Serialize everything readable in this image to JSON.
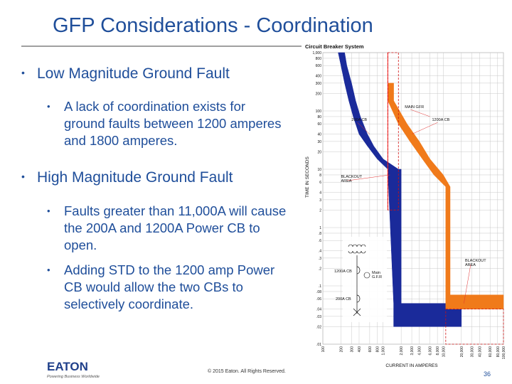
{
  "slide": {
    "title": "GFP Considerations - Coordination",
    "bullets": [
      {
        "text": "Low Magnitude Ground Fault",
        "subs": [
          "A lack of coordination exists for ground faults between 1200 amperes and 1800 amperes."
        ]
      },
      {
        "text": "High Magnitude Ground Fault",
        "subs": [
          "Faults greater than 11,000A will cause the 200A and 1200A Power CB to open.",
          "Adding STD to the 1200 amp Power CB would allow the two CBs to selectively coordinate."
        ]
      }
    ],
    "copyright": "© 2015 Eaton. All Rights Reserved.",
    "page_number": "36",
    "logo": {
      "brand": "EATON",
      "tagline": "Powering Business Worldwide"
    }
  },
  "chart_data": {
    "type": "line",
    "title": "Circuit Breaker System",
    "xlabel": "CURRENT IN AMPERES",
    "ylabel": "TIME IN SECONDS",
    "x_scale": "log",
    "y_scale": "log",
    "xlim": [
      100,
      100000
    ],
    "ylim": [
      0.01,
      1000
    ],
    "x_ticks": [
      "100",
      "200",
      "300",
      "400",
      "600",
      "800",
      "1,000",
      "2,000",
      "3,000",
      "4,000",
      "6,000",
      "8,000",
      "10,000",
      "20,000",
      "30,000",
      "40,000",
      "60,000",
      "80,000",
      "100,000"
    ],
    "x_tick_values": [
      100,
      200,
      300,
      400,
      600,
      800,
      1000,
      2000,
      3000,
      4000,
      6000,
      8000,
      10000,
      20000,
      30000,
      40000,
      60000,
      80000,
      100000
    ],
    "y_ticks": [
      "1,000",
      "800",
      "600",
      "400",
      "300",
      "200",
      "100",
      "80",
      "60",
      "40",
      "30",
      "20",
      "10",
      "8",
      "6",
      "4",
      "3",
      "2",
      "1",
      ".8",
      ".6",
      ".4",
      ".3",
      ".2",
      ".1",
      ".08",
      ".06",
      ".04",
      ".03",
      ".02",
      ".01"
    ],
    "y_tick_values": [
      1000,
      800,
      600,
      400,
      300,
      200,
      100,
      80,
      60,
      40,
      30,
      20,
      10,
      8,
      6,
      4,
      3,
      2,
      1,
      0.8,
      0.6,
      0.4,
      0.3,
      0.2,
      0.1,
      0.08,
      0.06,
      0.04,
      0.03,
      0.02,
      0.01
    ],
    "grid": true,
    "series": [
      {
        "name": "200A CB",
        "color": "#1a2a9a",
        "upper": [
          [
            230,
            1000
          ],
          [
            250,
            600
          ],
          [
            300,
            300
          ],
          [
            350,
            150
          ],
          [
            420,
            80
          ],
          [
            550,
            40
          ],
          [
            700,
            25
          ],
          [
            1000,
            15
          ],
          [
            1800,
            10
          ],
          [
            2000,
            10
          ],
          [
            2000,
            0.05
          ],
          [
            20000,
            0.05
          ],
          [
            20000,
            0.02
          ]
        ],
        "lower": [
          [
            180,
            1000
          ],
          [
            200,
            600
          ],
          [
            230,
            300
          ],
          [
            270,
            150
          ],
          [
            320,
            80
          ],
          [
            400,
            40
          ],
          [
            550,
            25
          ],
          [
            800,
            15
          ],
          [
            1200,
            10
          ],
          [
            1500,
            0.05
          ],
          [
            1500,
            0.02
          ],
          [
            20000,
            0.02
          ]
        ]
      },
      {
        "name": "1200A CB",
        "color": "#f07a1a",
        "upper": [
          [
            1500,
            300
          ],
          [
            1500,
            150
          ],
          [
            2500,
            60
          ],
          [
            4000,
            30
          ],
          [
            6000,
            15
          ],
          [
            10000,
            8
          ],
          [
            13000,
            5
          ],
          [
            13000,
            0.07
          ],
          [
            100000,
            0.07
          ],
          [
            100000,
            0.04
          ]
        ],
        "lower": [
          [
            1200,
            300
          ],
          [
            1200,
            150
          ],
          [
            1800,
            60
          ],
          [
            2800,
            30
          ],
          [
            4500,
            15
          ],
          [
            7000,
            8
          ],
          [
            11000,
            5
          ],
          [
            11000,
            0.04
          ],
          [
            100000,
            0.04
          ]
        ]
      },
      {
        "name": "MAIN GFR",
        "color": "#ff3030",
        "points": [
          [
            1200,
            2
          ],
          [
            1200,
            1000
          ]
        ]
      }
    ],
    "annotations": [
      "MAIN GFR",
      "200A CB",
      "1200A CB",
      "BLACKOUT AREA",
      "BLACKOUT AREA"
    ],
    "diagram_labels": {
      "cb_200": "200A CB",
      "cb_1200": "1200A CB",
      "main_gfr": "Main G.F.R"
    }
  }
}
